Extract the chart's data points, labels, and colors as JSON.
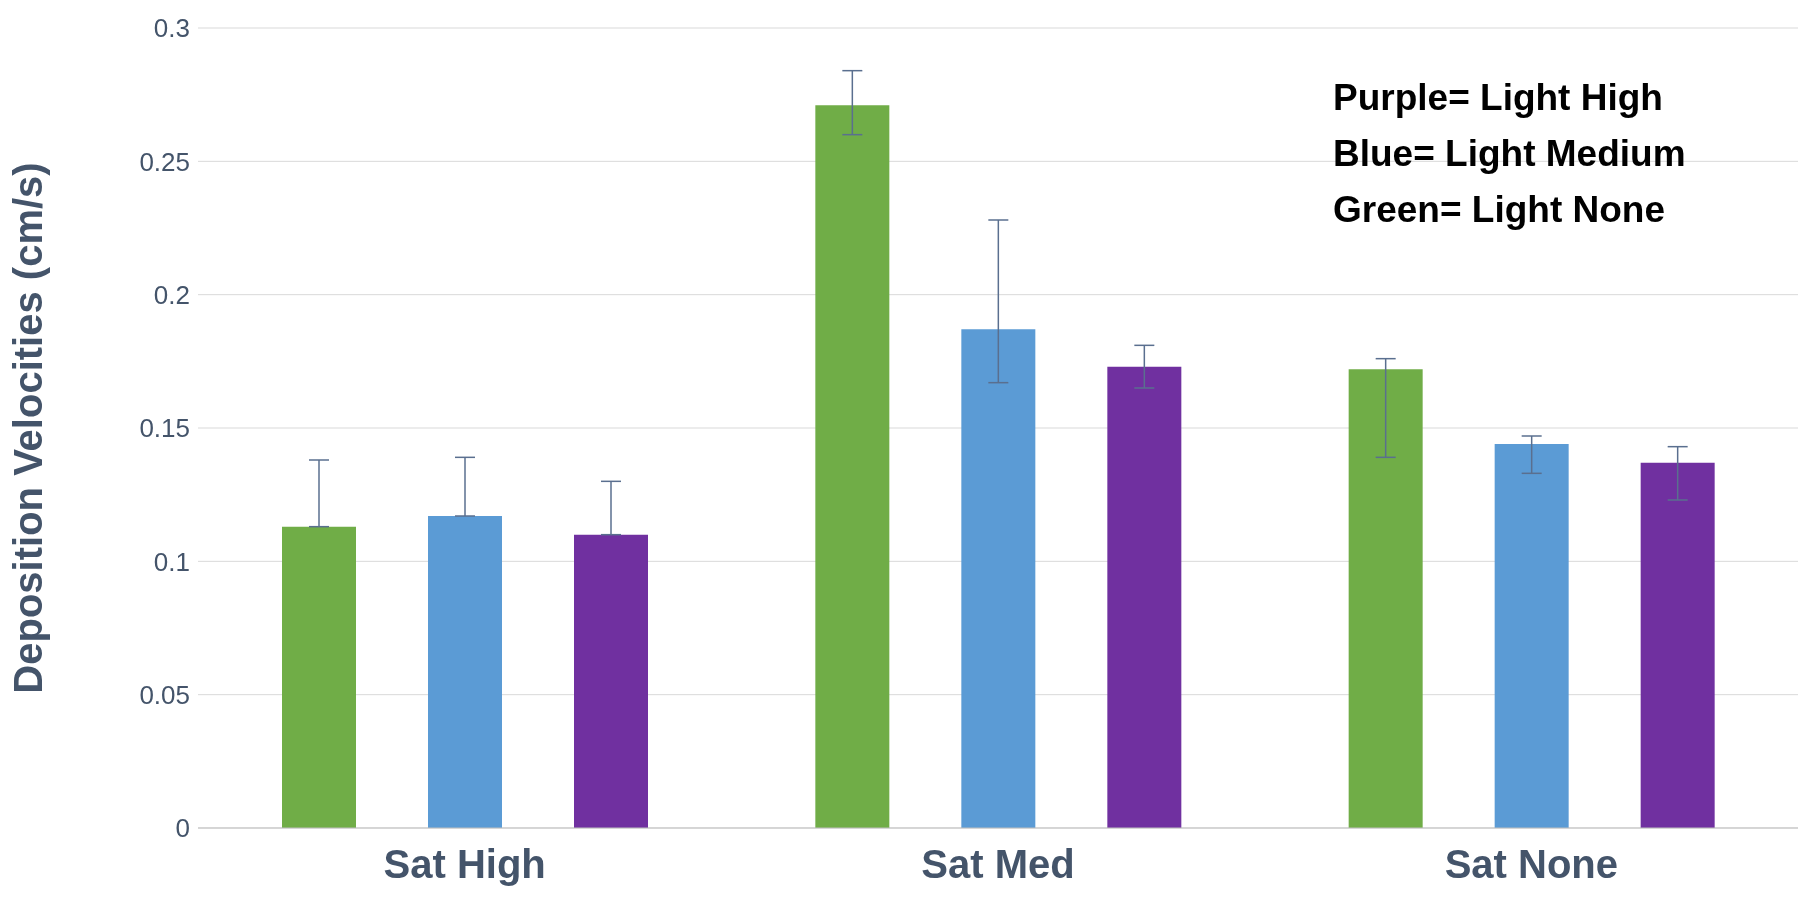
{
  "chart_data": {
    "type": "bar",
    "ylabel": "Deposition Velocities (cm/s)",
    "categories": [
      "Sat High",
      "Sat Med",
      "Sat None"
    ],
    "series": [
      {
        "color": "#70ad47",
        "values": [
          0.113,
          0.271,
          0.172
        ],
        "errors": [
          [
            0.113,
            0.138
          ],
          [
            0.26,
            0.284
          ],
          [
            0.139,
            0.176
          ]
        ]
      },
      {
        "color": "#5b9bd5",
        "values": [
          0.117,
          0.187,
          0.144
        ],
        "errors": [
          [
            0.117,
            0.139
          ],
          [
            0.167,
            0.228
          ],
          [
            0.133,
            0.147
          ]
        ]
      },
      {
        "color": "#7030a0",
        "values": [
          0.11,
          0.173,
          0.137
        ],
        "errors": [
          [
            0.11,
            0.13
          ],
          [
            0.165,
            0.181
          ],
          [
            0.123,
            0.143
          ]
        ]
      }
    ],
    "ylim": [
      0,
      0.3
    ],
    "yticks": [
      0,
      0.05,
      0.1,
      0.15,
      0.2,
      0.25,
      0.3
    ],
    "grid": "y",
    "annotations": [
      "Purple= Light High",
      "Blue= Light Medium",
      "Green= Light None"
    ]
  }
}
